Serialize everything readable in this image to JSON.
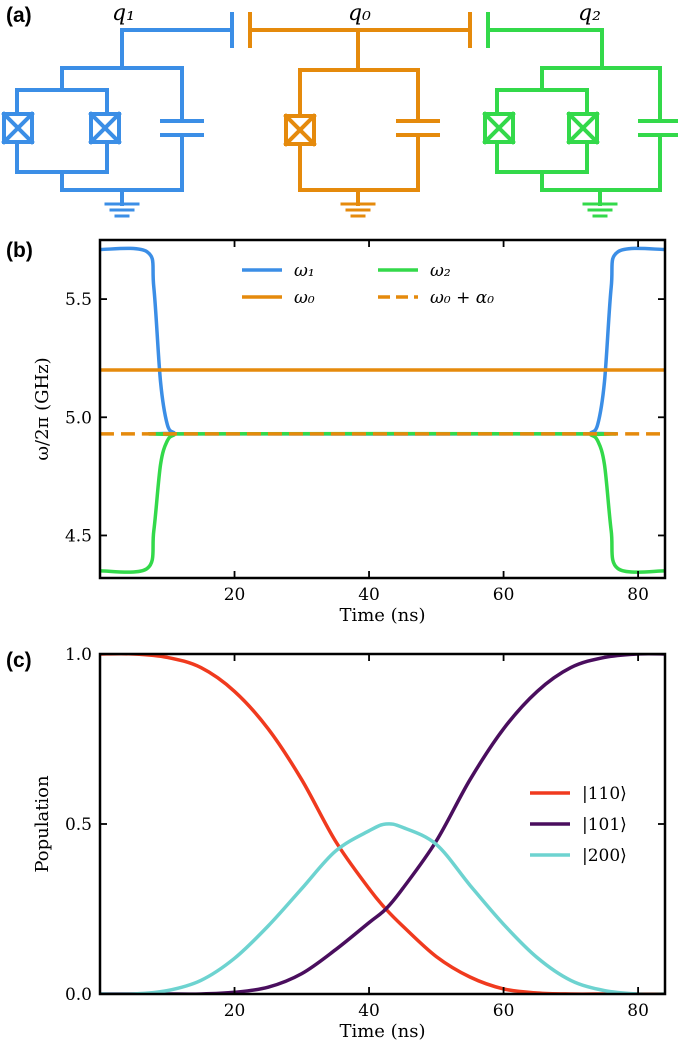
{
  "panels": {
    "a": {
      "label": "(a)"
    },
    "b": {
      "label": "(b)"
    },
    "c": {
      "label": "(c)"
    }
  },
  "circuit": {
    "qubits": [
      {
        "id": "q1",
        "label": "q₁",
        "color": "#3b8ee6",
        "junctions": 2
      },
      {
        "id": "q0",
        "label": "q₀",
        "color": "#e58a0c",
        "junctions": 1
      },
      {
        "id": "q2",
        "label": "q₂",
        "color": "#33d94a",
        "junctions": 2
      }
    ]
  },
  "chart_data": [
    {
      "panel": "b",
      "type": "line",
      "xlabel": "Time (ns)",
      "ylabel": "ω/2π (GHz)",
      "xlim": [
        0,
        84
      ],
      "ylim": [
        4.32,
        5.75
      ],
      "xticks": [
        20,
        40,
        60,
        80
      ],
      "yticks": [
        4.5,
        5.0,
        5.5
      ],
      "ytick_labels": [
        "4.5",
        "5.0",
        "5.5"
      ],
      "legend_placement": "top-center",
      "series": [
        {
          "name": "ω₁",
          "color": "#3b8ee6",
          "dash": "solid",
          "x": [
            0,
            7,
            8,
            9,
            10,
            11,
            12,
            72,
            73,
            74,
            75,
            76,
            77,
            84
          ],
          "y": [
            5.71,
            5.7,
            5.55,
            5.15,
            4.97,
            4.935,
            4.93,
            4.93,
            4.935,
            4.97,
            5.15,
            5.55,
            5.7,
            5.71
          ]
        },
        {
          "name": "ω₀",
          "color": "#e58a0c",
          "dash": "solid",
          "x": [
            0,
            84
          ],
          "y": [
            5.2,
            5.2
          ]
        },
        {
          "name": "ω₂",
          "color": "#33d94a",
          "dash": "solid",
          "x": [
            0,
            7,
            8,
            9,
            10,
            11,
            12,
            72,
            73,
            74,
            75,
            76,
            77,
            84
          ],
          "y": [
            4.35,
            4.36,
            4.52,
            4.8,
            4.9,
            4.925,
            4.93,
            4.93,
            4.925,
            4.9,
            4.8,
            4.52,
            4.36,
            4.35
          ]
        },
        {
          "name": "ω₀ + α₀",
          "color": "#e58a0c",
          "dash": "dashed",
          "x": [
            0,
            84
          ],
          "y": [
            4.93,
            4.93
          ]
        }
      ]
    },
    {
      "panel": "c",
      "type": "line",
      "xlabel": "Time (ns)",
      "ylabel": "Population",
      "xlim": [
        0,
        84
      ],
      "ylim": [
        0,
        1
      ],
      "xticks": [
        20,
        40,
        60,
        80
      ],
      "yticks": [
        0,
        0.5,
        1.0
      ],
      "ytick_labels": [
        "0.0",
        "0.5",
        "1.0"
      ],
      "legend_placement": "center-right",
      "series": [
        {
          "name": "|110⟩",
          "color": "#f03a1e",
          "x": [
            0,
            5,
            10,
            15,
            20,
            25,
            30,
            35,
            40,
            42.5,
            45,
            50,
            55,
            60,
            65,
            70,
            75,
            80,
            84
          ],
          "y": [
            1.0,
            1.0,
            0.99,
            0.96,
            0.89,
            0.78,
            0.63,
            0.45,
            0.31,
            0.25,
            0.2,
            0.11,
            0.05,
            0.015,
            0.003,
            0.0,
            0.0,
            0.0,
            0.0
          ]
        },
        {
          "name": "|101⟩",
          "color": "#4a0e5e",
          "x": [
            0,
            5,
            10,
            15,
            20,
            25,
            30,
            35,
            40,
            42.5,
            45,
            50,
            55,
            60,
            65,
            70,
            75,
            80,
            84
          ],
          "y": [
            0.0,
            0.0,
            0.0,
            0.0,
            0.005,
            0.02,
            0.06,
            0.13,
            0.21,
            0.25,
            0.31,
            0.45,
            0.63,
            0.78,
            0.89,
            0.96,
            0.99,
            1.0,
            1.0
          ]
        },
        {
          "name": "|200⟩",
          "color": "#6dd3d0",
          "x": [
            0,
            5,
            10,
            15,
            20,
            25,
            30,
            35,
            40,
            42.5,
            45,
            50,
            55,
            60,
            65,
            70,
            75,
            80,
            84
          ],
          "y": [
            0.0,
            0.0,
            0.01,
            0.04,
            0.105,
            0.2,
            0.31,
            0.42,
            0.48,
            0.5,
            0.49,
            0.44,
            0.32,
            0.205,
            0.107,
            0.04,
            0.01,
            0.0,
            0.0
          ]
        }
      ]
    }
  ]
}
